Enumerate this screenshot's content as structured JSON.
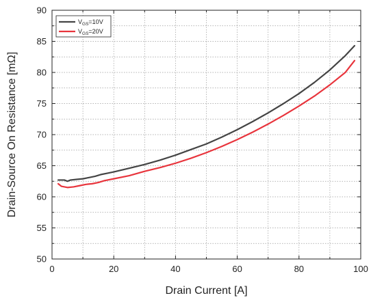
{
  "chart_data": {
    "type": "line",
    "title": "",
    "xlabel": "Drain Current [A]",
    "ylabel": "Drain-Source On Resistance [mΩ]",
    "xlim": [
      0,
      100
    ],
    "ylim": [
      50,
      90
    ],
    "xticks": [
      0,
      20,
      40,
      60,
      80,
      100
    ],
    "yticks": [
      50,
      55,
      60,
      65,
      70,
      75,
      80,
      85,
      90
    ],
    "grid": true,
    "grid_style": "dotted",
    "legend_position": "top-left",
    "series": [
      {
        "name_main": "V",
        "name_sub": "GS",
        "name_tail": "=10V",
        "color": "#444444",
        "x": [
          2,
          4,
          5,
          6,
          8,
          10,
          12,
          14,
          16,
          18,
          20,
          25,
          30,
          35,
          40,
          45,
          50,
          55,
          60,
          65,
          70,
          75,
          80,
          85,
          90,
          95,
          98
        ],
        "y": [
          62.7,
          62.7,
          62.5,
          62.7,
          62.8,
          62.9,
          63.1,
          63.3,
          63.6,
          63.8,
          64.0,
          64.6,
          65.2,
          65.9,
          66.7,
          67.6,
          68.5,
          69.6,
          70.8,
          72.1,
          73.5,
          75.0,
          76.6,
          78.4,
          80.4,
          82.7,
          84.3
        ]
      },
      {
        "name_main": "V",
        "name_sub": "GS",
        "name_tail": "=20V",
        "color": "#e8343c",
        "x": [
          2,
          3,
          5,
          7,
          9,
          11,
          13,
          15,
          17,
          20,
          25,
          30,
          35,
          40,
          45,
          50,
          55,
          60,
          65,
          70,
          75,
          80,
          85,
          90,
          95,
          98
        ],
        "y": [
          62.1,
          61.7,
          61.5,
          61.6,
          61.8,
          62.0,
          62.1,
          62.3,
          62.6,
          62.9,
          63.4,
          64.1,
          64.7,
          65.4,
          66.2,
          67.1,
          68.1,
          69.2,
          70.4,
          71.7,
          73.1,
          74.6,
          76.2,
          78.0,
          80.0,
          81.9
        ]
      }
    ]
  }
}
